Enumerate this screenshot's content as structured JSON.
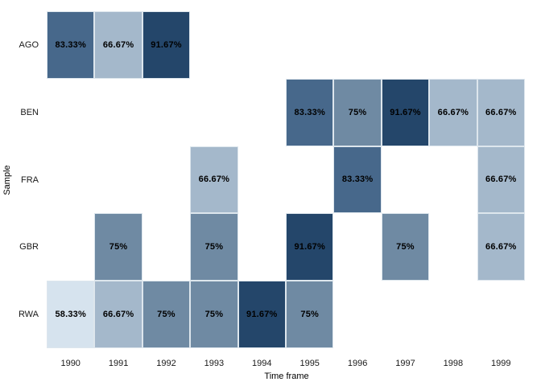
{
  "chart_data": {
    "type": "heatmap",
    "title": "",
    "xlabel": "Time frame",
    "ylabel": "Sample",
    "x_categories": [
      "1990",
      "1991",
      "1992",
      "1993",
      "1994",
      "1995",
      "1996",
      "1997",
      "1998",
      "1999"
    ],
    "y_categories": [
      "AGO",
      "BEN",
      "FRA",
      "GBR",
      "RWA"
    ],
    "legend": "none",
    "grid": "off",
    "cells": [
      {
        "y": "AGO",
        "x": "1990",
        "value": 83.33,
        "label": "83.33%"
      },
      {
        "y": "AGO",
        "x": "1991",
        "value": 66.67,
        "label": "66.67%"
      },
      {
        "y": "AGO",
        "x": "1992",
        "value": 91.67,
        "label": "91.67%"
      },
      {
        "y": "BEN",
        "x": "1995",
        "value": 83.33,
        "label": "83.33%"
      },
      {
        "y": "BEN",
        "x": "1996",
        "value": 75,
        "label": "75%"
      },
      {
        "y": "BEN",
        "x": "1997",
        "value": 91.67,
        "label": "91.67%"
      },
      {
        "y": "BEN",
        "x": "1998",
        "value": 66.67,
        "label": "66.67%"
      },
      {
        "y": "BEN",
        "x": "1999",
        "value": 66.67,
        "label": "66.67%"
      },
      {
        "y": "FRA",
        "x": "1993",
        "value": 66.67,
        "label": "66.67%"
      },
      {
        "y": "FRA",
        "x": "1996",
        "value": 83.33,
        "label": "83.33%"
      },
      {
        "y": "FRA",
        "x": "1999",
        "value": 66.67,
        "label": "66.67%"
      },
      {
        "y": "GBR",
        "x": "1991",
        "value": 75,
        "label": "75%"
      },
      {
        "y": "GBR",
        "x": "1993",
        "value": 75,
        "label": "75%"
      },
      {
        "y": "GBR",
        "x": "1995",
        "value": 91.67,
        "label": "91.67%"
      },
      {
        "y": "GBR",
        "x": "1997",
        "value": 75,
        "label": "75%"
      },
      {
        "y": "GBR",
        "x": "1999",
        "value": 66.67,
        "label": "66.67%"
      },
      {
        "y": "RWA",
        "x": "1990",
        "value": 58.33,
        "label": "58.33%"
      },
      {
        "y": "RWA",
        "x": "1991",
        "value": 66.67,
        "label": "66.67%"
      },
      {
        "y": "RWA",
        "x": "1992",
        "value": 75,
        "label": "75%"
      },
      {
        "y": "RWA",
        "x": "1993",
        "value": 75,
        "label": "75%"
      },
      {
        "y": "RWA",
        "x": "1994",
        "value": 91.67,
        "label": "91.67%"
      },
      {
        "y": "RWA",
        "x": "1995",
        "value": 75,
        "label": "75%"
      }
    ],
    "color_scale": {
      "58.33%": "#d6e3ee",
      "66.67%": "#a4b8cb",
      "75%": "#6f8aa3",
      "83.33%": "#47688b",
      "91.67%": "#24466a"
    },
    "background_color": "#ffffff",
    "label_text_color": "#000000"
  }
}
